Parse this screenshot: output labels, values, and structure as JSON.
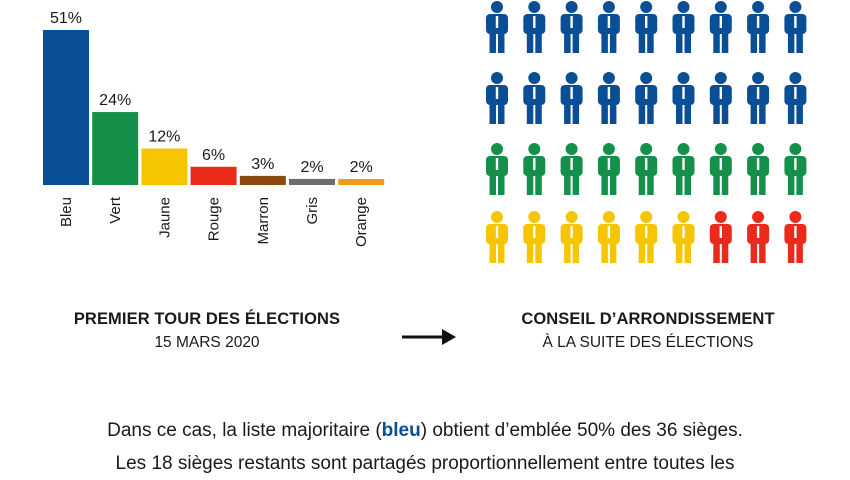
{
  "chart_data": [
    {
      "type": "bar",
      "categories": [
        "Bleu",
        "Vert",
        "Jaune",
        "Rouge",
        "Marron",
        "Gris",
        "Orange"
      ],
      "values": [
        51,
        24,
        12,
        6,
        3,
        2,
        2
      ],
      "value_labels": [
        "51%",
        "24%",
        "12%",
        "6%",
        "3%",
        "2%",
        "2%"
      ],
      "colors": [
        "#0a4f96",
        "#14904a",
        "#f7c500",
        "#ea2a1a",
        "#8a4a10",
        "#6d6d6d",
        "#f39a1c"
      ],
      "unit": "%",
      "grid": false,
      "legend": "none"
    },
    {
      "type": "pictogram",
      "total_seats": 36,
      "rows": 4,
      "columns": 9,
      "seat_groups": [
        {
          "party": "Bleu",
          "seats": 18,
          "color": "#0a4f96"
        },
        {
          "party": "Vert",
          "seats": 9,
          "color": "#14904a"
        },
        {
          "party": "Jaune",
          "seats": 6,
          "color": "#f7c500"
        },
        {
          "party": "Rouge",
          "seats": 3,
          "color": "#ea2a1a"
        }
      ]
    }
  ],
  "captions": {
    "left_title": "PREMIER TOUR DES ÉLECTIONS",
    "left_sub": "15 MARS 2020",
    "right_title": "CONSEIL D’ARRONDISSEMENT",
    "right_sub": "À LA SUITE DES ÉLECTIONS"
  },
  "footnote": {
    "line1_pre": "Dans ce cas, la liste majoritaire (",
    "line1_highlight": "bleu",
    "line1_post": ") obtient d’emblée 50% des 36 sièges.",
    "line2": "Les 18 sièges restants sont partagés proportionnellement entre toutes les"
  },
  "icons": {
    "arrow": "arrow-right-icon",
    "seat": "person-icon"
  }
}
